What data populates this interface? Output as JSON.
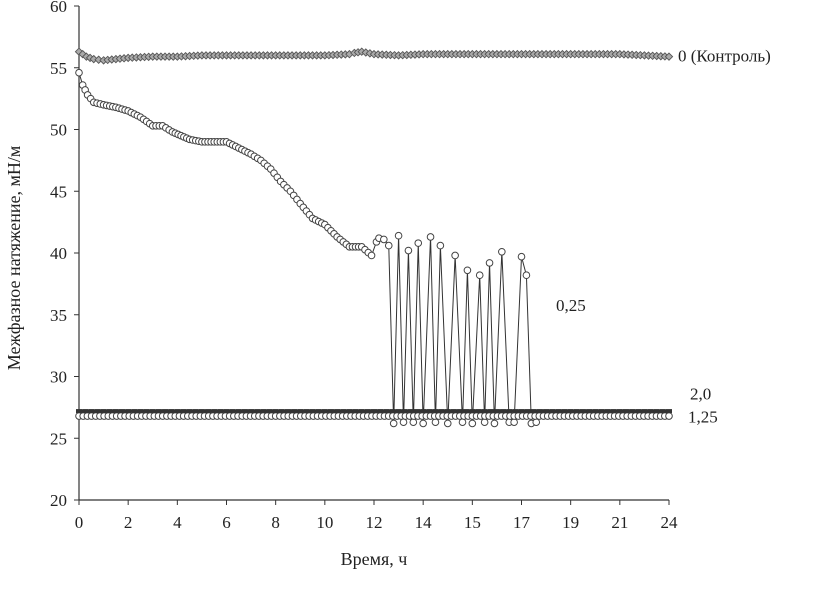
{
  "chart_data": {
    "type": "line",
    "title": "",
    "xlabel": "Время, ч",
    "ylabel": "Межфазное натяжение, мН/м",
    "xlim": [
      0,
      24
    ],
    "ylim": [
      20,
      60
    ],
    "x_ticks": [
      "0",
      "2",
      "4",
      "6",
      "8",
      "10",
      "12",
      "14",
      "15",
      "17",
      "19",
      "21",
      "24"
    ],
    "y_ticks": [
      "20",
      "25",
      "30",
      "35",
      "40",
      "45",
      "50",
      "55",
      "60"
    ],
    "grid": false,
    "legend": "none",
    "series": [
      {
        "name": "0 (Контроль)",
        "marker": "diamond",
        "x": [
          0,
          0.3,
          0.6,
          1,
          1.5,
          2,
          3,
          4,
          5,
          6,
          7,
          8,
          9,
          10,
          11,
          11.2,
          11.5,
          12,
          13,
          14,
          15,
          16,
          17,
          18,
          19,
          20,
          21,
          22,
          23,
          24
        ],
        "y": [
          56.3,
          55.9,
          55.7,
          55.6,
          55.7,
          55.8,
          55.9,
          55.9,
          56.0,
          56.0,
          56.0,
          56.0,
          56.0,
          56.0,
          56.1,
          56.2,
          56.3,
          56.1,
          56.0,
          56.1,
          56.1,
          56.1,
          56.1,
          56.1,
          56.1,
          56.1,
          56.1,
          56.1,
          56.0,
          55.9
        ]
      },
      {
        "name": "0,25",
        "marker": "circle",
        "x": [
          0,
          0.15,
          0.35,
          0.6,
          1.0,
          1.5,
          2.0,
          2.5,
          3.0,
          3.4,
          3.8,
          4.5,
          5.0,
          5.5,
          6.0,
          6.5,
          7.0,
          7.4,
          7.8,
          8.2,
          8.6,
          9.0,
          9.5,
          10.0,
          10.5,
          11.0,
          11.5,
          11.9,
          12.1,
          12.2,
          12.4,
          12.6,
          12.8,
          13.0,
          13.2,
          13.4,
          13.6,
          13.8,
          14.0,
          14.3,
          14.5,
          14.7,
          15.0,
          15.3,
          15.6,
          15.8,
          16.0,
          16.3,
          16.5,
          16.7,
          16.9,
          17.2,
          17.5,
          17.7,
          18.0,
          18.2,
          18.4,
          18.6
        ],
        "y": [
          54.6,
          53.6,
          52.8,
          52.2,
          52.0,
          51.8,
          51.5,
          51.0,
          50.3,
          50.3,
          49.8,
          49.2,
          49.0,
          49.0,
          49.0,
          48.5,
          48.0,
          47.5,
          46.8,
          45.8,
          45.0,
          44.0,
          42.8,
          42.3,
          41.3,
          40.5,
          40.5,
          39.8,
          40.9,
          41.2,
          41.1,
          40.6,
          26.2,
          41.4,
          26.3,
          40.2,
          26.3,
          40.8,
          26.2,
          41.3,
          26.3,
          40.6,
          26.2,
          39.8,
          26.3,
          38.6,
          26.2,
          38.2,
          26.3,
          39.2,
          26.2,
          40.1,
          26.3,
          26.3,
          39.7,
          38.2,
          26.2,
          26.3
        ]
      },
      {
        "name": "1,25",
        "marker": "circle",
        "x": [
          0,
          24
        ],
        "y": [
          26.8,
          26.8
        ]
      },
      {
        "name": "2,0",
        "marker": "cross",
        "x": [
          0,
          24
        ],
        "y": [
          27.2,
          27.2
        ]
      }
    ]
  }
}
